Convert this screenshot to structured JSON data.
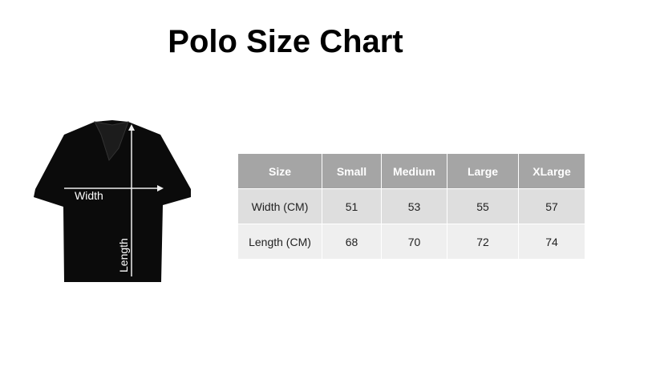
{
  "title": "Polo Size Chart",
  "shirt": {
    "width_label": "Width",
    "length_label": "Length"
  },
  "table": {
    "headers": [
      "Size",
      "Small",
      "Medium",
      "Large",
      "XLarge"
    ],
    "rows": [
      {
        "label": "Width (CM)",
        "values": [
          "51",
          "53",
          "55",
          "57"
        ]
      },
      {
        "label": "Length (CM)",
        "values": [
          "68",
          "70",
          "72",
          "74"
        ]
      }
    ]
  },
  "colors": {
    "header": "#a5a5a5",
    "row1": "#dedede",
    "row2": "#efefef"
  }
}
